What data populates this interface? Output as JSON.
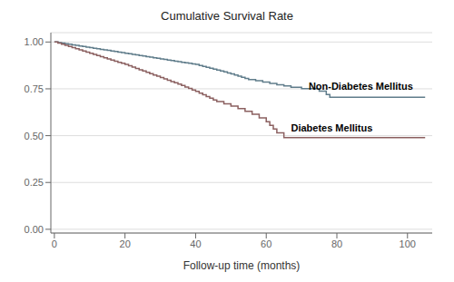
{
  "chart_data": {
    "type": "step",
    "title": "Cumulative Survival Rate",
    "x_label": "Follow-up time  (months)",
    "xlim": [
      -1,
      107
    ],
    "ylim": [
      -0.02,
      1.05
    ],
    "xticks": [
      0,
      20,
      40,
      60,
      80,
      100
    ],
    "yticks": [
      {
        "value": 0,
        "label": "0.00"
      },
      0.25,
      {
        "value": 0.5,
        "label": "0.50"
      },
      0.75,
      {
        "value": 1,
        "label": "1.00"
      }
    ],
    "grid": "y",
    "series": [
      {
        "name": "Non-Diabetes Mellitus",
        "color": "#607d8b",
        "label_x": 72,
        "label_y": 0.765,
        "x": [
          0,
          1,
          2,
          3,
          4,
          5,
          6,
          7,
          8,
          9,
          10,
          11,
          12,
          13,
          14,
          15,
          16,
          17,
          18,
          19,
          20,
          21,
          22,
          23,
          24,
          25,
          26,
          27,
          28,
          29,
          30,
          31,
          32,
          33,
          34,
          35,
          36,
          37,
          38,
          39,
          40,
          41,
          42,
          43,
          44,
          45,
          46,
          47,
          48,
          49,
          50,
          51,
          52,
          53,
          54,
          55,
          57,
          59,
          61,
          63,
          65,
          67,
          70,
          75,
          77,
          78,
          105
        ],
        "values": [
          1.0,
          0.997,
          0.994,
          0.991,
          0.988,
          0.985,
          0.982,
          0.979,
          0.976,
          0.973,
          0.97,
          0.967,
          0.964,
          0.961,
          0.958,
          0.955,
          0.952,
          0.949,
          0.946,
          0.943,
          0.94,
          0.937,
          0.934,
          0.931,
          0.928,
          0.925,
          0.922,
          0.919,
          0.916,
          0.913,
          0.91,
          0.907,
          0.904,
          0.901,
          0.898,
          0.895,
          0.892,
          0.889,
          0.886,
          0.883,
          0.88,
          0.875,
          0.87,
          0.865,
          0.86,
          0.855,
          0.85,
          0.845,
          0.84,
          0.835,
          0.83,
          0.824,
          0.818,
          0.812,
          0.806,
          0.8,
          0.793,
          0.786,
          0.779,
          0.772,
          0.765,
          0.758,
          0.751,
          0.738,
          0.72,
          0.705,
          0.705
        ]
      },
      {
        "name": "Diabetes Mellitus",
        "color": "#8b6060",
        "label_x": 67,
        "label_y": 0.54,
        "x": [
          0,
          1,
          2,
          3,
          4,
          5,
          6,
          7,
          8,
          9,
          10,
          11,
          12,
          13,
          14,
          15,
          16,
          17,
          18,
          19,
          20,
          21,
          22,
          23,
          24,
          25,
          26,
          27,
          28,
          29,
          30,
          31,
          32,
          33,
          34,
          35,
          36,
          37,
          38,
          39,
          40,
          41,
          42,
          43,
          44,
          45,
          46,
          48,
          50,
          52,
          54,
          56,
          58,
          60,
          61,
          62,
          63,
          65,
          105
        ],
        "values": [
          1.0,
          0.994,
          0.988,
          0.982,
          0.976,
          0.97,
          0.964,
          0.958,
          0.952,
          0.946,
          0.94,
          0.934,
          0.928,
          0.922,
          0.916,
          0.91,
          0.904,
          0.898,
          0.892,
          0.886,
          0.88,
          0.873,
          0.866,
          0.859,
          0.852,
          0.845,
          0.838,
          0.831,
          0.824,
          0.817,
          0.81,
          0.803,
          0.796,
          0.789,
          0.782,
          0.775,
          0.768,
          0.76,
          0.752,
          0.744,
          0.736,
          0.727,
          0.718,
          0.709,
          0.7,
          0.691,
          0.682,
          0.67,
          0.658,
          0.645,
          0.63,
          0.614,
          0.595,
          0.574,
          0.555,
          0.536,
          0.515,
          0.49,
          0.49
        ]
      }
    ]
  }
}
